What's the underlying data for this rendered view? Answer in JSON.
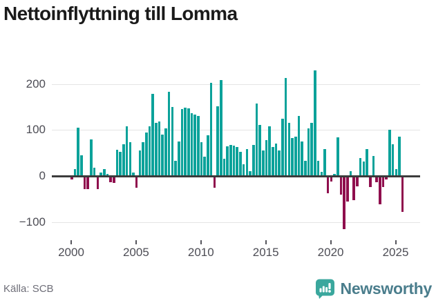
{
  "title": "Nettoinflyttning till Lomma",
  "source": "Källa: SCB",
  "branding": {
    "name": "Newsworthy",
    "icon": "newsworthy-bar-chart-bubble"
  },
  "colors": {
    "positive_bar": "#0ba29a",
    "negative_bar": "#8f0e4d",
    "gridline": "#e4e4e4",
    "zero_line": "#3b3b3b",
    "axis_text": "#4d4d55",
    "title_text": "#1a1a1a",
    "source_text": "#6e6e78",
    "logo_icon": "#3aa79d",
    "logo_text": "#4a7d8c"
  },
  "chart_data": {
    "type": "bar",
    "title": "Nettoinflyttning till Lomma",
    "frequency": "quarterly",
    "start": "2000 Q1",
    "end": "2025 Q3",
    "values": [
      -8,
      15,
      105,
      45,
      -28,
      -28,
      80,
      18,
      -28,
      8,
      15,
      4,
      -13,
      -15,
      57,
      52,
      69,
      108,
      73,
      8,
      -26,
      55,
      73,
      95,
      108,
      178,
      115,
      118,
      90,
      103,
      183,
      150,
      33,
      75,
      145,
      148,
      147,
      136,
      133,
      130,
      74,
      42,
      88,
      203,
      -25,
      152,
      209,
      37,
      64,
      68,
      66,
      63,
      53,
      26,
      58,
      10,
      68,
      157,
      111,
      55,
      78,
      108,
      63,
      70,
      55,
      125,
      213,
      115,
      83,
      85,
      130,
      75,
      33,
      103,
      116,
      230,
      33,
      9,
      58,
      -38,
      -12,
      5,
      84,
      -41,
      -115,
      -56,
      11,
      -52,
      -22,
      39,
      32,
      59,
      -24,
      43,
      -13,
      -61,
      -24,
      -8,
      100,
      69,
      15,
      85,
      -78
    ],
    "x_ticks": [
      {
        "year": 2000,
        "label": "2000"
      },
      {
        "year": 2005,
        "label": "2005"
      },
      {
        "year": 2010,
        "label": "2010"
      },
      {
        "year": 2015,
        "label": "2015"
      },
      {
        "year": 2020,
        "label": "2020"
      },
      {
        "year": 2025,
        "label": "2025"
      }
    ],
    "y_ticks": [
      {
        "value": -100,
        "label": "−100"
      },
      {
        "value": 0,
        "label": "0"
      },
      {
        "value": 100,
        "label": "100"
      },
      {
        "value": 200,
        "label": "200"
      }
    ],
    "ylim": [
      -135,
      247
    ],
    "grid": true,
    "legend": false
  }
}
